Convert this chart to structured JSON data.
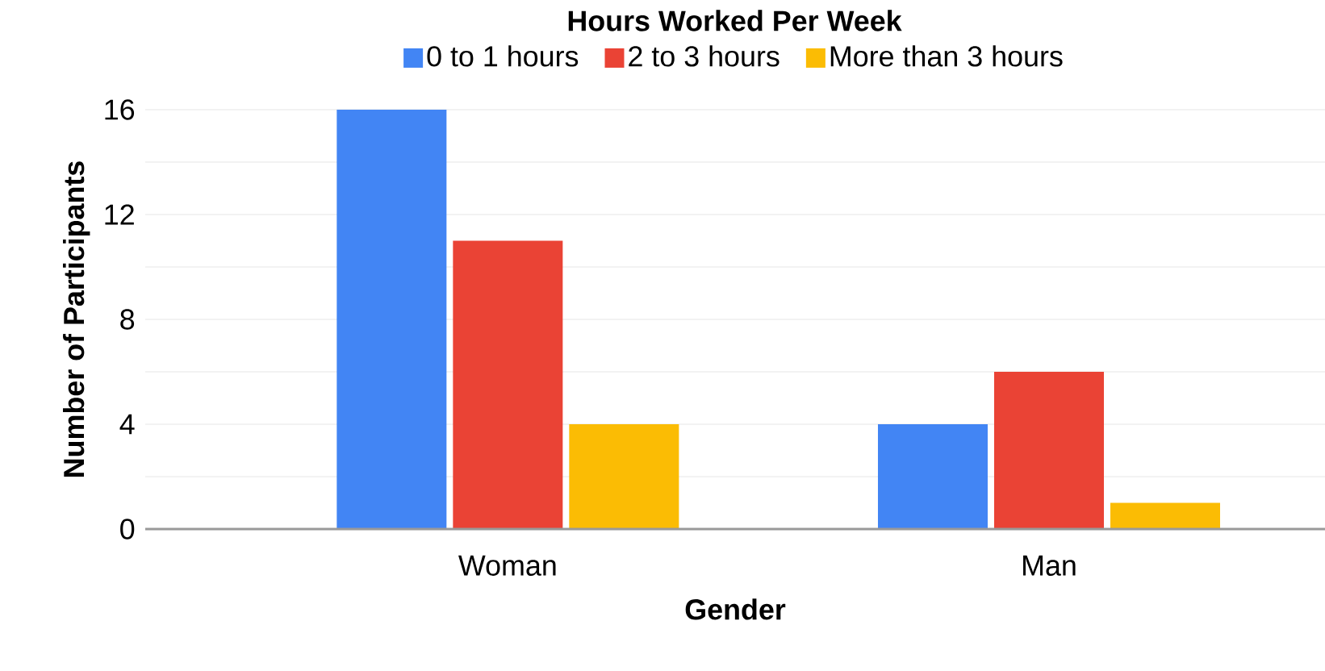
{
  "chart_data": {
    "type": "bar",
    "title": "Hours Worked Per Week",
    "xlabel": "Gender",
    "ylabel": "Number of Participants",
    "categories": [
      "Woman",
      "Man"
    ],
    "series": [
      {
        "name": "0 to 1 hours",
        "color": "#4285f4",
        "values": [
          16,
          4
        ]
      },
      {
        "name": "2 to 3 hours",
        "color": "#ea4335",
        "values": [
          11,
          6
        ]
      },
      {
        "name": "More than 3 hours",
        "color": "#fbbc04",
        "values": [
          4,
          1
        ]
      }
    ],
    "ylim": [
      0,
      16
    ],
    "yticks": [
      0,
      4,
      8,
      12,
      16
    ],
    "grid": "y",
    "legend": "top"
  }
}
